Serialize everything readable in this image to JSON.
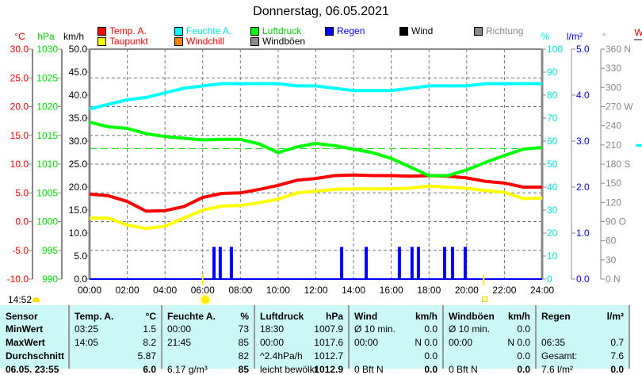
{
  "title": "Donnerstag, 06.05.2021",
  "legend": [
    {
      "label": "Temp. A.",
      "box": "#ff0000",
      "text": "#ff0000"
    },
    {
      "label": "Feuchte A.",
      "box": "#00ffff",
      "text": "#00e0e0"
    },
    {
      "label": "Luftdruck",
      "box": "#00ff00",
      "text": "#00cc00"
    },
    {
      "label": "Regen",
      "box": "#0000ff",
      "text": "#0000ff"
    },
    {
      "label": "Wind",
      "box": "#000000",
      "text": "#000000"
    },
    {
      "label": "Richtung",
      "box": "#888888",
      "text": "#888888"
    },
    {
      "label": "Taupunkt",
      "box": "#ffff00",
      "text": "#ff0000"
    },
    {
      "label": "Windchill",
      "box": "#ff8000",
      "text": "#ff0000"
    },
    {
      "label": "Windböen",
      "box": "#908890",
      "text": "#000000"
    }
  ],
  "axes": {
    "temp": {
      "unit": "°C",
      "ticks": [
        "30.0",
        "25.0",
        "20.0",
        "15.0",
        "10.0",
        "5.0",
        "0.0",
        "-5.0",
        "-10.0"
      ]
    },
    "pressure": {
      "unit": "hPa",
      "ticks": [
        "1030",
        "1025",
        "1020",
        "1015",
        "1010",
        "1005",
        "1000",
        "995",
        "990"
      ]
    },
    "wind": {
      "unit": "km/h",
      "ticks": [
        "50.0",
        "45.0",
        "40.0",
        "35.0",
        "30.0",
        "25.0",
        "20.0",
        "15.0",
        "10.0",
        "5.0",
        "0.0"
      ]
    },
    "humidity": {
      "unit": "%",
      "ticks": [
        "100",
        "90",
        "80",
        "70",
        "60",
        "50",
        "40",
        "30",
        "20",
        "10",
        "0"
      ]
    },
    "rain": {
      "unit": "l/m²",
      "ticks": [
        "5.0",
        "4.0",
        "3.0",
        "2.0",
        "1.0",
        "0.0"
      ]
    },
    "direction": {
      "unit": "°",
      "ticks": [
        "360 N",
        "330",
        "300",
        "270 W",
        "240",
        "210",
        "180 S",
        "150",
        "120",
        "90  O",
        "60",
        "30",
        "0    N"
      ]
    },
    "time": [
      "00:00",
      "02:00",
      "04:00",
      "06:00",
      "08:00",
      "10:00",
      "12:00",
      "14:00",
      "16:00",
      "18:00",
      "20:00",
      "22:00",
      "24:00"
    ],
    "side_label": "W"
  },
  "chart_data": {
    "type": "line",
    "x_hours": [
      0,
      1,
      2,
      3,
      4,
      5,
      6,
      7,
      8,
      9,
      10,
      11,
      12,
      13,
      14,
      15,
      16,
      17,
      18,
      19,
      20,
      21,
      22,
      23,
      24
    ],
    "series": [
      {
        "name": "Temp. A.",
        "unit": "°C",
        "color": "#ff0000",
        "values": [
          4.8,
          4.5,
          3.5,
          1.8,
          1.9,
          2.6,
          4.2,
          4.9,
          5.0,
          5.6,
          6.3,
          7.2,
          7.5,
          8.0,
          8.1,
          8.0,
          8.0,
          7.9,
          8.0,
          7.9,
          7.6,
          7.0,
          6.7,
          6.0,
          6.0
        ]
      },
      {
        "name": "Taupunkt",
        "unit": "°C",
        "color": "#ffff00",
        "values": [
          0.6,
          0.6,
          -0.6,
          -1.2,
          -0.8,
          0.6,
          2.0,
          2.7,
          2.8,
          3.3,
          3.9,
          5.0,
          5.3,
          5.6,
          5.7,
          5.7,
          5.7,
          5.8,
          6.2,
          6.0,
          5.8,
          5.4,
          5.1,
          4.0,
          4.1
        ]
      },
      {
        "name": "Feuchte A.",
        "unit": "%",
        "color": "#00ffff",
        "values": [
          74,
          76,
          78,
          79,
          81,
          83,
          84,
          85,
          85,
          85,
          85,
          84,
          84,
          83,
          82,
          82,
          82,
          83,
          84,
          84,
          84,
          85,
          85,
          85,
          85
        ]
      },
      {
        "name": "Luftdruck",
        "unit": "hPa",
        "color": "#00ff00",
        "values": [
          1017.3,
          1016.5,
          1016.2,
          1015.3,
          1014.8,
          1014.5,
          1014.2,
          1014.3,
          1014.3,
          1013.5,
          1012.0,
          1013.0,
          1013.6,
          1013.2,
          1012.6,
          1012.0,
          1011.0,
          1009.5,
          1008.0,
          1008.0,
          1009.0,
          1010.3,
          1011.5,
          1012.6,
          1012.9
        ]
      },
      {
        "name": "Wind",
        "unit": "km/h",
        "color": "#0000ff",
        "values": [
          0,
          0,
          0,
          0,
          0,
          0,
          0,
          0,
          0,
          0,
          0,
          0,
          0,
          0,
          0,
          0,
          0,
          0,
          0,
          0,
          0,
          0,
          0,
          0,
          0
        ]
      }
    ],
    "pressure_average": 1012.7,
    "rain": {
      "unit": "l/m²",
      "hours": [
        6.6,
        6.93,
        7.52,
        13.37,
        14.67,
        16.43,
        17.1,
        17.44,
        18.83,
        19.25,
        19.92
      ],
      "values": [
        0.7,
        0.7,
        0.7,
        0.7,
        0.7,
        0.7,
        0.7,
        0.7,
        0.7,
        0.7,
        0.7
      ]
    },
    "sunrise_hour": 6.0,
    "sunset_hour": 20.9,
    "xlim": [
      0,
      24
    ],
    "ylim_kmh": [
      0,
      50
    ],
    "ylim_temp": [
      -10,
      30
    ],
    "ylim_hpa": [
      990,
      1030
    ],
    "ylim_pct": [
      0,
      100
    ],
    "ylim_rain": [
      0,
      5
    ],
    "ylim_dir": [
      0,
      360
    ]
  },
  "status": {
    "time": "14:52"
  },
  "table": {
    "columns": [
      {
        "h1": "Sensor",
        "h2": "",
        "rows": [
          [
            "MinWert",
            ""
          ],
          [
            "MaxWert",
            ""
          ],
          [
            "Durchschnitt",
            ""
          ],
          [
            "06.05. 23:55",
            ""
          ]
        ]
      },
      {
        "h1": "Temp. A.",
        "h2": "°C",
        "rows": [
          [
            "03:25",
            "1.5"
          ],
          [
            "14:05",
            "8.2"
          ],
          [
            "",
            "5.87"
          ],
          [
            "",
            "6.0"
          ]
        ]
      },
      {
        "h1": "Feuchte A.",
        "h2": "%",
        "rows": [
          [
            "00:00",
            "73"
          ],
          [
            "21:45",
            "85"
          ],
          [
            "",
            "82"
          ],
          [
            "6.17 g/m³",
            "85"
          ]
        ]
      },
      {
        "h1": "Luftdruck",
        "h2": "hPa",
        "rows": [
          [
            "18:30",
            "1007.9"
          ],
          [
            "00:00",
            "1017.6"
          ],
          [
            "^2.4hPa/h",
            "1012.7"
          ],
          [
            "leicht bewölkt",
            "1012.9"
          ]
        ]
      },
      {
        "h1": "Wind",
        "h2": "km/h",
        "rows": [
          [
            "Ø 10 min.",
            "0.0"
          ],
          [
            "00:00",
            "N 0.0"
          ],
          [
            "",
            "0.0"
          ],
          [
            "0 Bft N",
            "0.0"
          ]
        ]
      },
      {
        "h1": "Windböen",
        "h2": "km/h",
        "rows": [
          [
            "Ø 10 min.",
            "0.0"
          ],
          [
            "00:00",
            "N 0.0"
          ],
          [
            "",
            "0.0"
          ],
          [
            "0 Bft N",
            "0.0"
          ]
        ]
      },
      {
        "h1": "Regen",
        "h2": "l/m²",
        "rows": [
          [
            "",
            ""
          ],
          [
            "06:35",
            "0.7"
          ],
          [
            "Gesamt:",
            "7.6"
          ],
          [
            "7.6 l/m²",
            "0.0"
          ]
        ]
      }
    ]
  }
}
